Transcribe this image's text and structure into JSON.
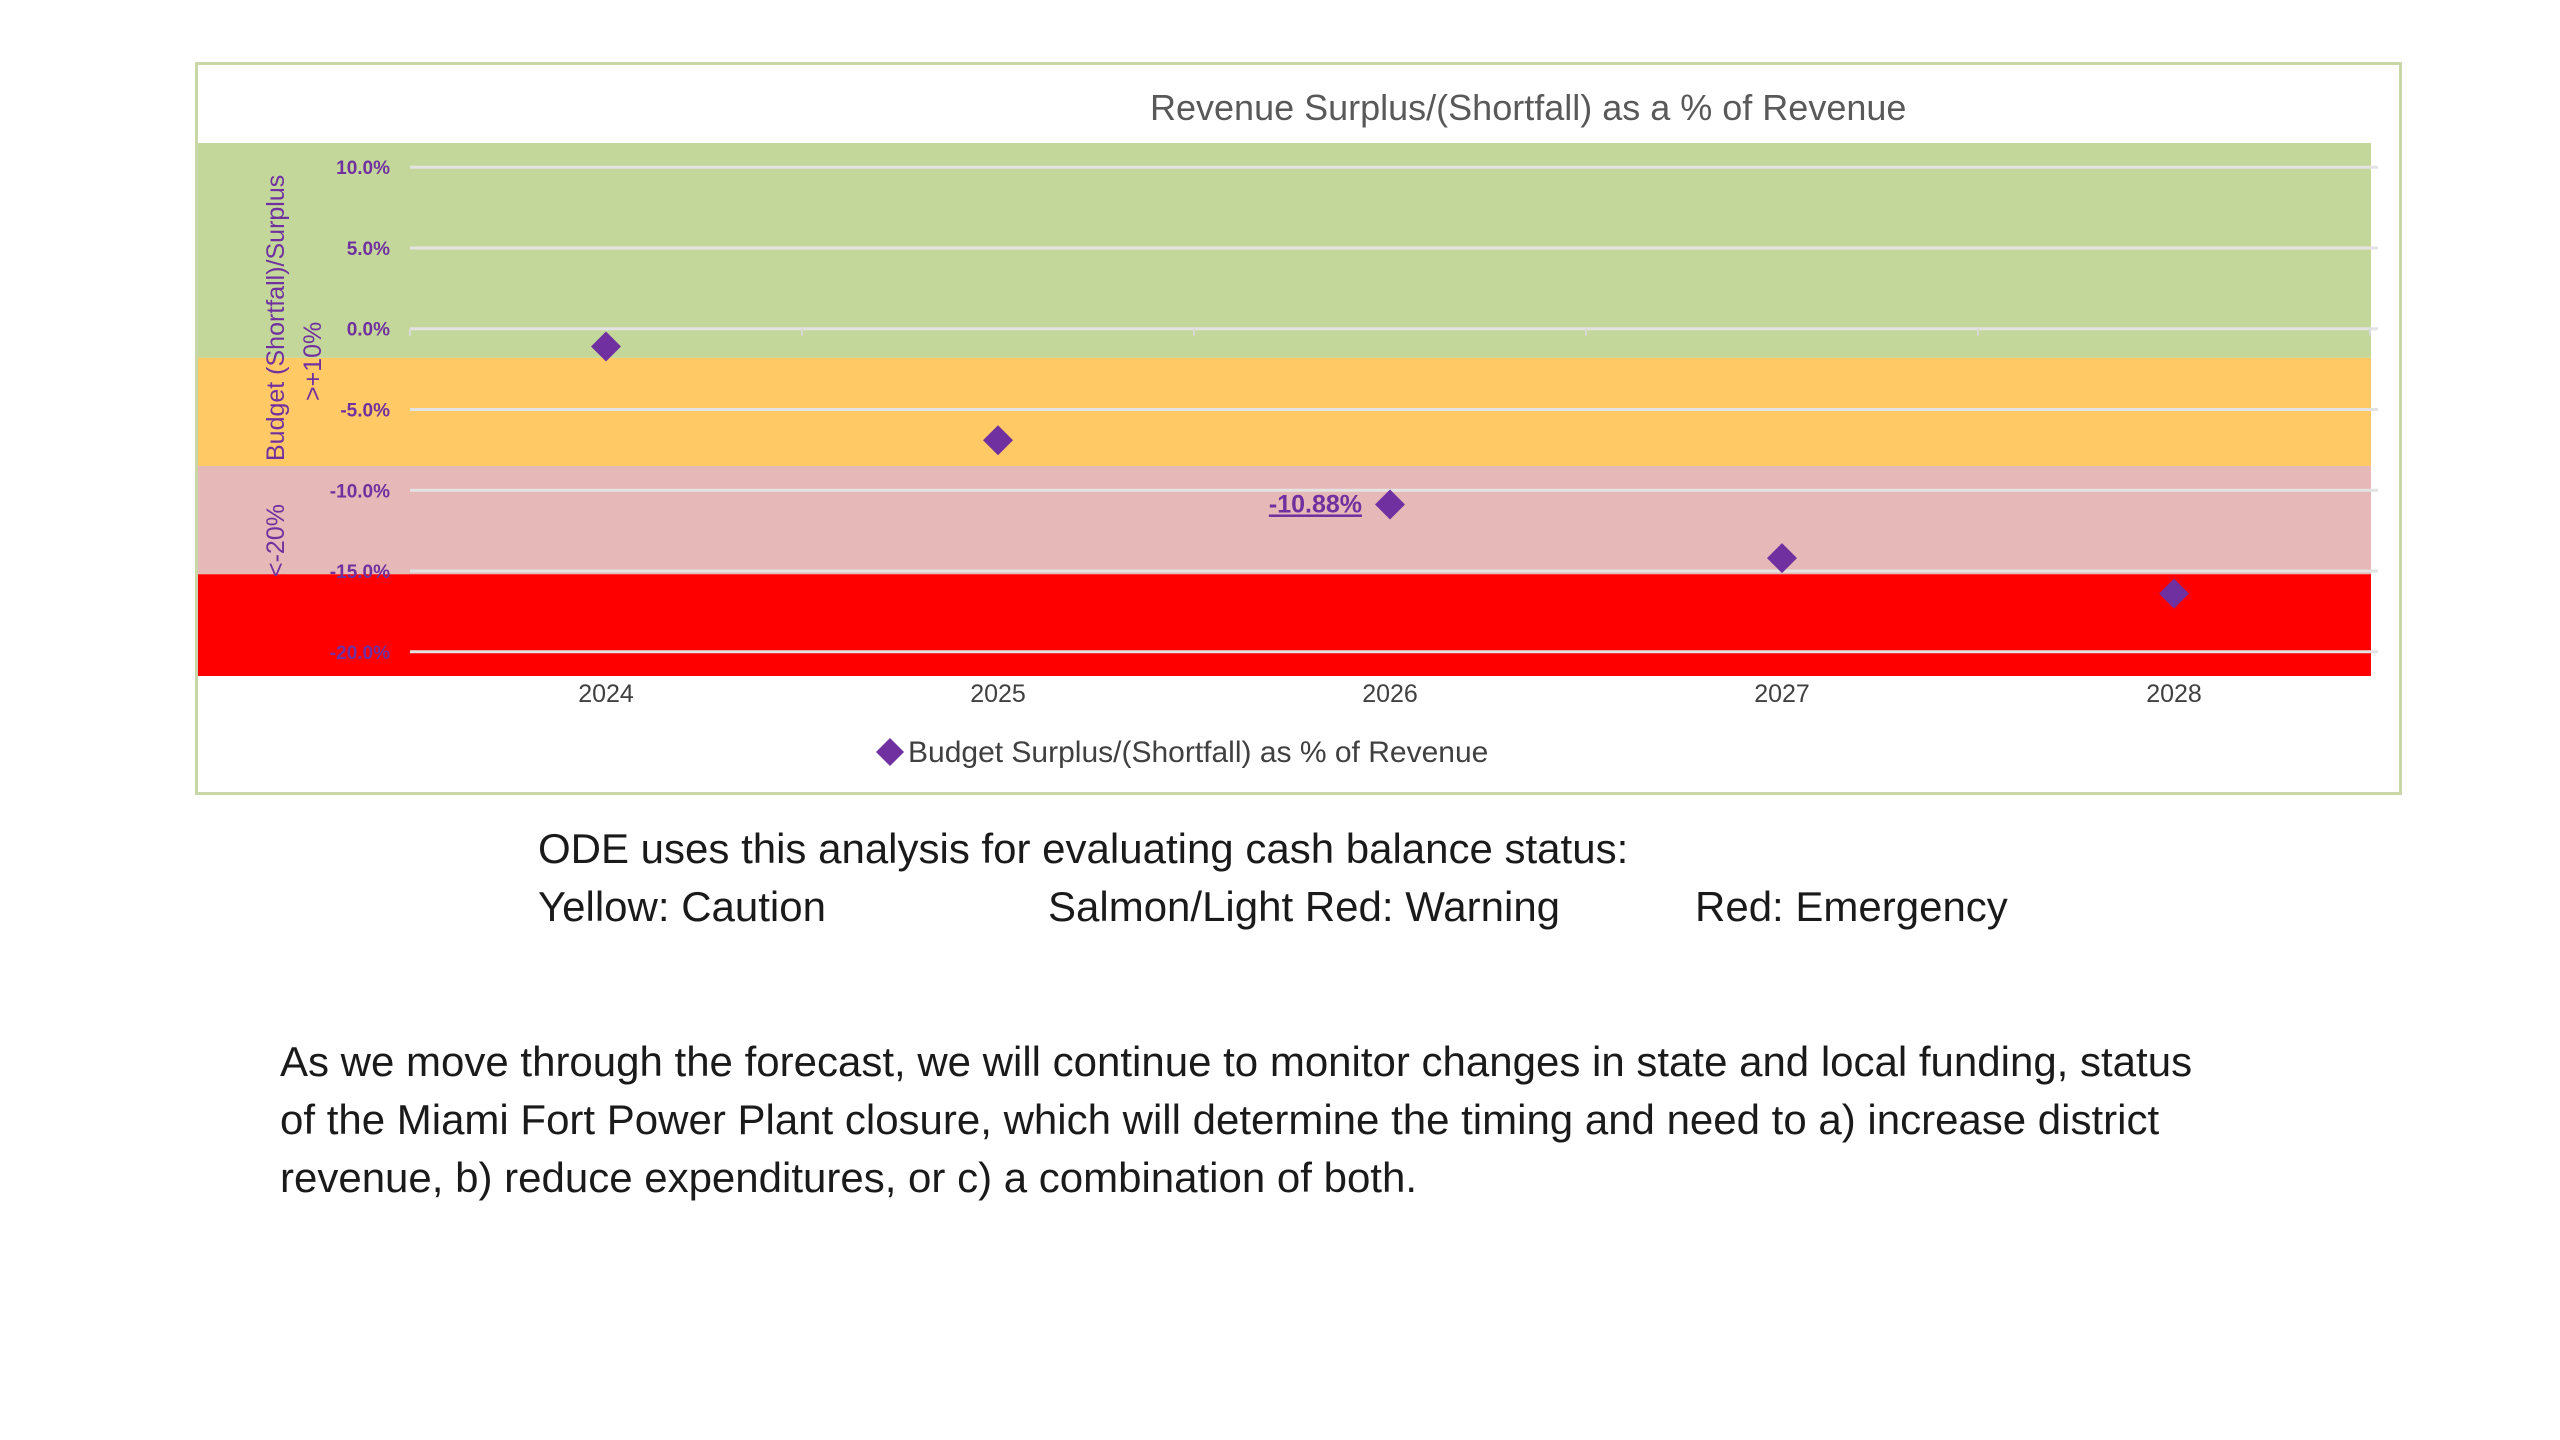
{
  "chart_data": {
    "type": "scatter",
    "title": "Revenue Surplus/(Shortfall) as a % of Revenue",
    "categories": [
      "2024",
      "2025",
      "2026",
      "2027",
      "2028"
    ],
    "series": [
      {
        "name": "Budget Surplus/(Shortfall) as % of Revenue",
        "values": [
          -1.1,
          -6.9,
          -10.88,
          -14.2,
          -16.4
        ],
        "marker": "diamond",
        "color": "#7030a0"
      }
    ],
    "ylim": [
      -21.5,
      11.5
    ],
    "yticks": [
      10,
      5,
      0,
      -5,
      -10,
      -15,
      -20
    ],
    "ytick_labels": [
      "10.0%",
      "5.0%",
      "0.0%",
      "-5.0%",
      "-10.0%",
      "-15.0%",
      "-20.0%"
    ],
    "data_labels": [
      {
        "index": 2,
        "text": "-10.88%"
      }
    ],
    "bands": [
      {
        "from": -1.8,
        "to": 11.5,
        "color": "#c4d79b"
      },
      {
        "from": -8.5,
        "to": -1.8,
        "color": "#ffc966"
      },
      {
        "from": -15.2,
        "to": -8.5,
        "color": "#e6b8b7"
      },
      {
        "from": -21.5,
        "to": -15.2,
        "color": "#ff0000"
      }
    ],
    "side_labels": {
      "upper_1": "Budget (Shortfall)/Surplus",
      "upper_2": ">+10%",
      "lower": "<-20%"
    },
    "legend_position": "bottom",
    "grid": true
  },
  "notes": {
    "ode_line": "ODE uses this analysis for evaluating cash balance status:",
    "yellow": "Yellow: Caution",
    "salmon": "Salmon/Light Red:  Warning",
    "red": "Red:  Emergency",
    "paragraph": "As we move through the forecast, we will continue to monitor changes in state and local funding, status\nof the Miami Fort Power Plant closure, which will determine the timing and need to a) increase district\nrevenue, b) reduce expenditures, or c) a combination of both."
  }
}
